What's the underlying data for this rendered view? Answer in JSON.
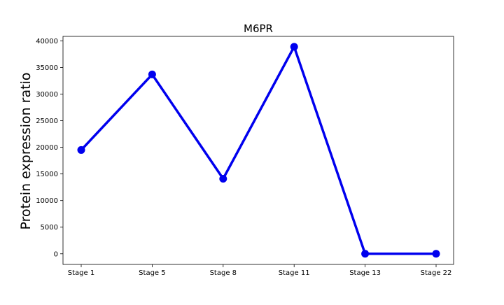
{
  "chart_data": {
    "type": "line",
    "title": "M6PR",
    "xlabel": "",
    "ylabel": "Protein expression ratio",
    "categories": [
      "Stage 1",
      "Stage 5",
      "Stage 8",
      "Stage 11",
      "Stage 13",
      "Stage 22"
    ],
    "series": [
      {
        "values": [
          19500,
          33700,
          14100,
          38900,
          0,
          0
        ],
        "color": "#0000ee",
        "marker": "circle"
      }
    ],
    "ylim": [
      -2000,
      40850
    ],
    "yticks": [
      0,
      5000,
      10000,
      15000,
      20000,
      25000,
      30000,
      35000,
      40000
    ],
    "ytick_labels": [
      "0",
      "5000",
      "10000",
      "15000",
      "20000",
      "25000",
      "30000",
      "35000",
      "40000"
    ],
    "grid": false,
    "legend": "none"
  }
}
